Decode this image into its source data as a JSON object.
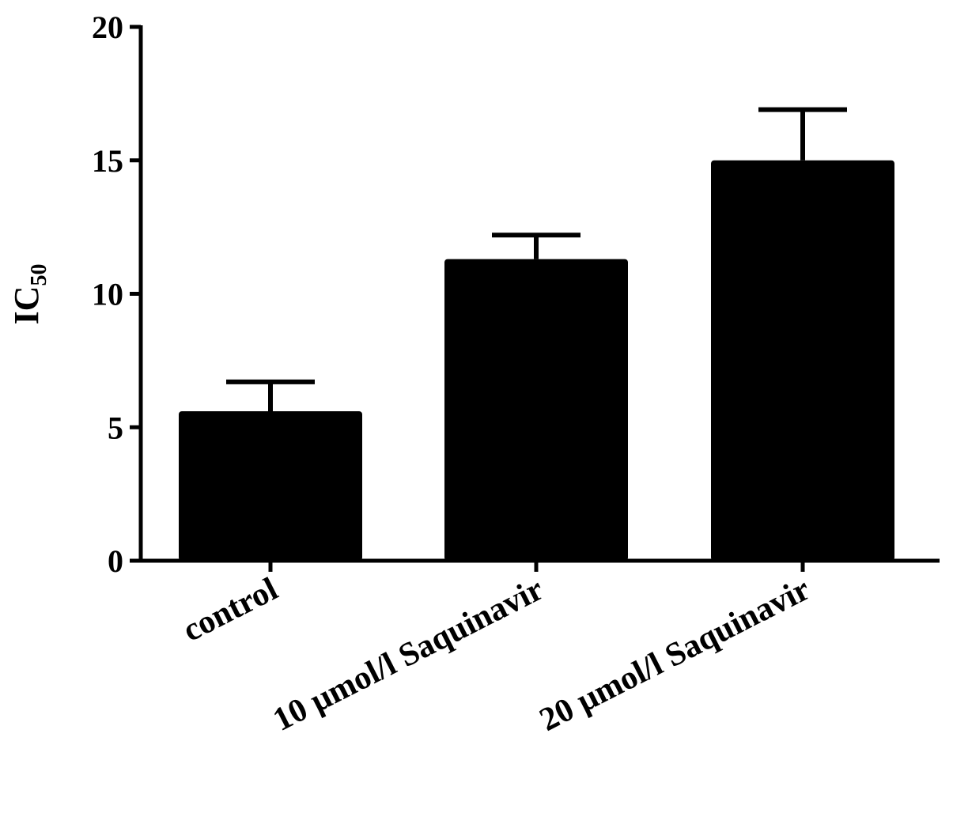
{
  "chart_data": {
    "type": "bar",
    "ylabel": "IC",
    "ylabel_subscript": "50",
    "categories": [
      "control",
      "10 µmol/l Saquinavir",
      "20 µmol/l Saquinavir"
    ],
    "values": [
      5.6,
      11.3,
      15.0
    ],
    "errors": [
      1.1,
      0.9,
      1.9
    ],
    "color": "#000000",
    "ylim": [
      0,
      20
    ],
    "yticks": [
      0,
      5,
      10,
      15,
      20
    ]
  }
}
